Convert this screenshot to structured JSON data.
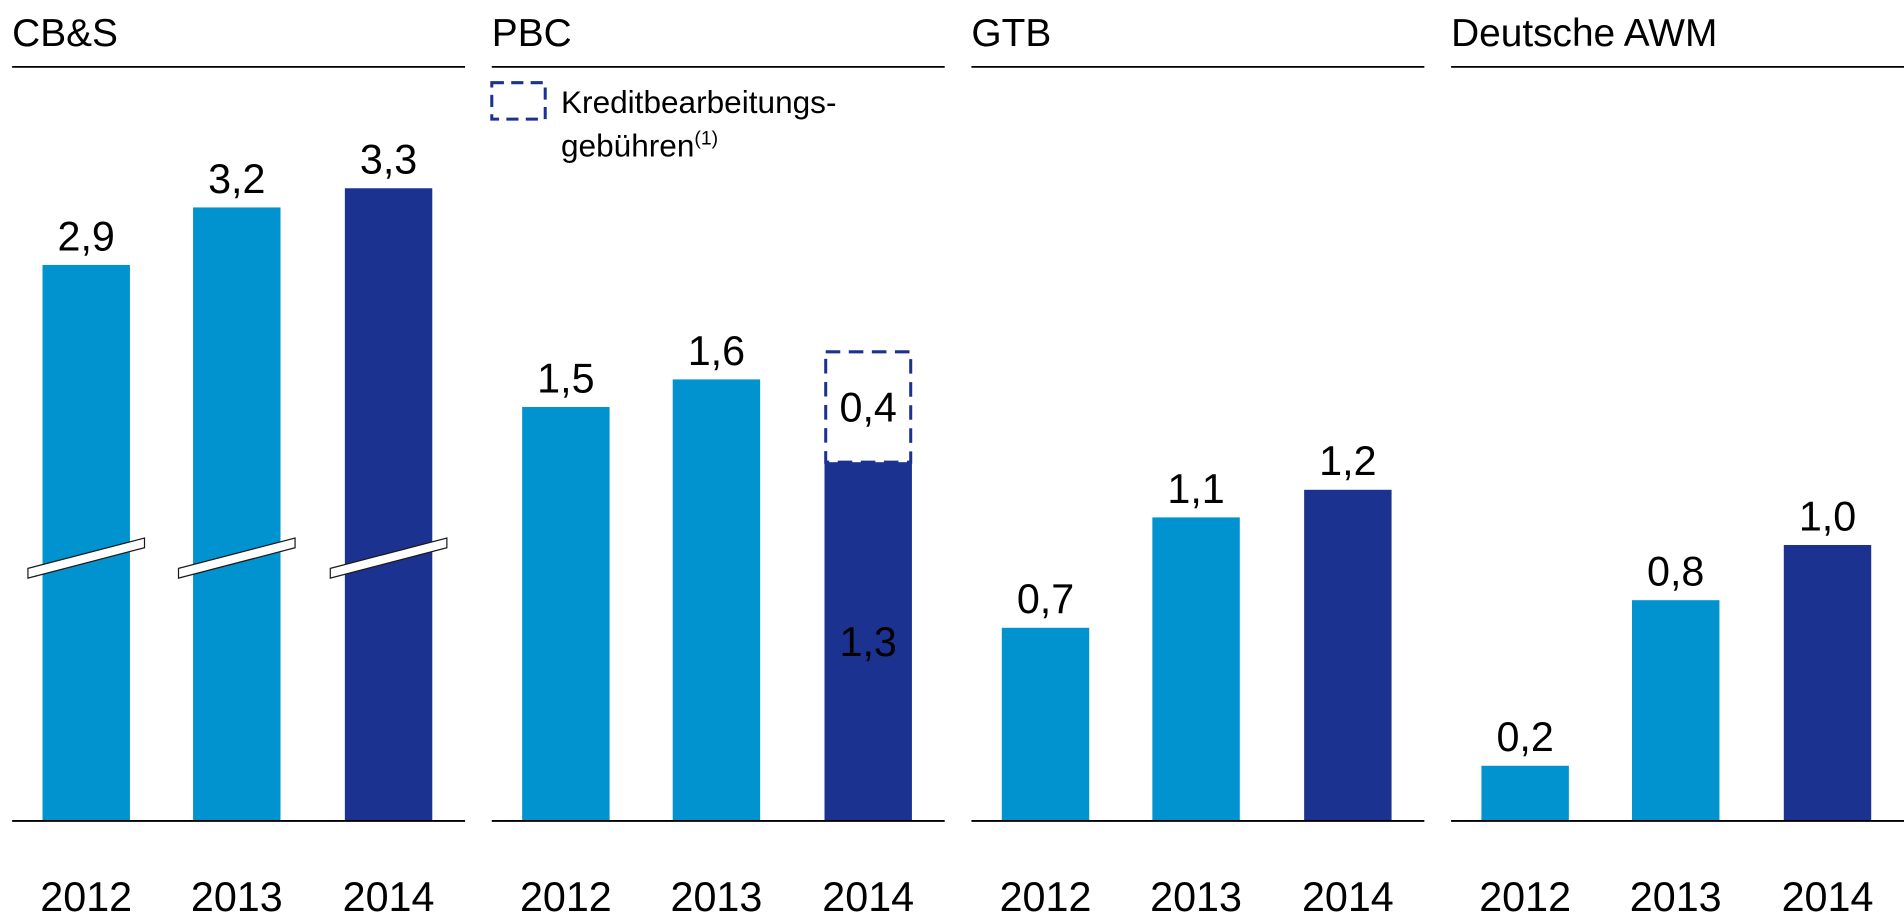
{
  "chart_data": [
    {
      "type": "bar",
      "title": "CB&S",
      "categories": [
        "2012",
        "2013",
        "2014"
      ],
      "values": [
        2.9,
        3.2,
        3.3
      ],
      "value_labels": [
        "2,9",
        "3,2",
        "3,3"
      ],
      "colors": [
        "#0093d0",
        "#0093d0",
        "#1b3291"
      ],
      "ylim": [
        0,
        3.8
      ],
      "axis_break": true
    },
    {
      "type": "stacked_bar",
      "title": "PBC",
      "categories": [
        "2012",
        "2013",
        "2014"
      ],
      "ylim": [
        0,
        2.64
      ],
      "series": [
        {
          "values": [
            1.5,
            1.6,
            1.3
          ],
          "value_labels": [
            "1,5",
            "1,6",
            "1,3"
          ],
          "colors": [
            "#0093d0",
            "#0093d0",
            "#1b3291"
          ]
        },
        {
          "name": [
            "Kreditbearbeitungs-",
            "gebühren"
          ],
          "name_note": "(1)",
          "values": [
            null,
            null,
            0.4
          ],
          "value_labels": [
            null,
            null,
            "0,4"
          ],
          "color": "#1b3291",
          "style": "dashed"
        }
      ]
    },
    {
      "type": "bar",
      "title": "GTB",
      "categories": [
        "2012",
        "2013",
        "2014"
      ],
      "values": [
        0.7,
        1.1,
        1.2
      ],
      "value_labels": [
        "0,7",
        "1,1",
        "1,2"
      ],
      "colors": [
        "#0093d0",
        "#0093d0",
        "#1b3291"
      ],
      "ylim": [
        0,
        2.64
      ]
    },
    {
      "type": "bar",
      "title": "Deutsche AWM",
      "categories": [
        "2012",
        "2013",
        "2014"
      ],
      "values": [
        0.2,
        0.8,
        1.0
      ],
      "value_labels": [
        "0,2",
        "0,8",
        "1,0"
      ],
      "colors": [
        "#0093d0",
        "#0093d0",
        "#1b3291"
      ],
      "ylim": [
        0,
        2.64
      ]
    }
  ]
}
